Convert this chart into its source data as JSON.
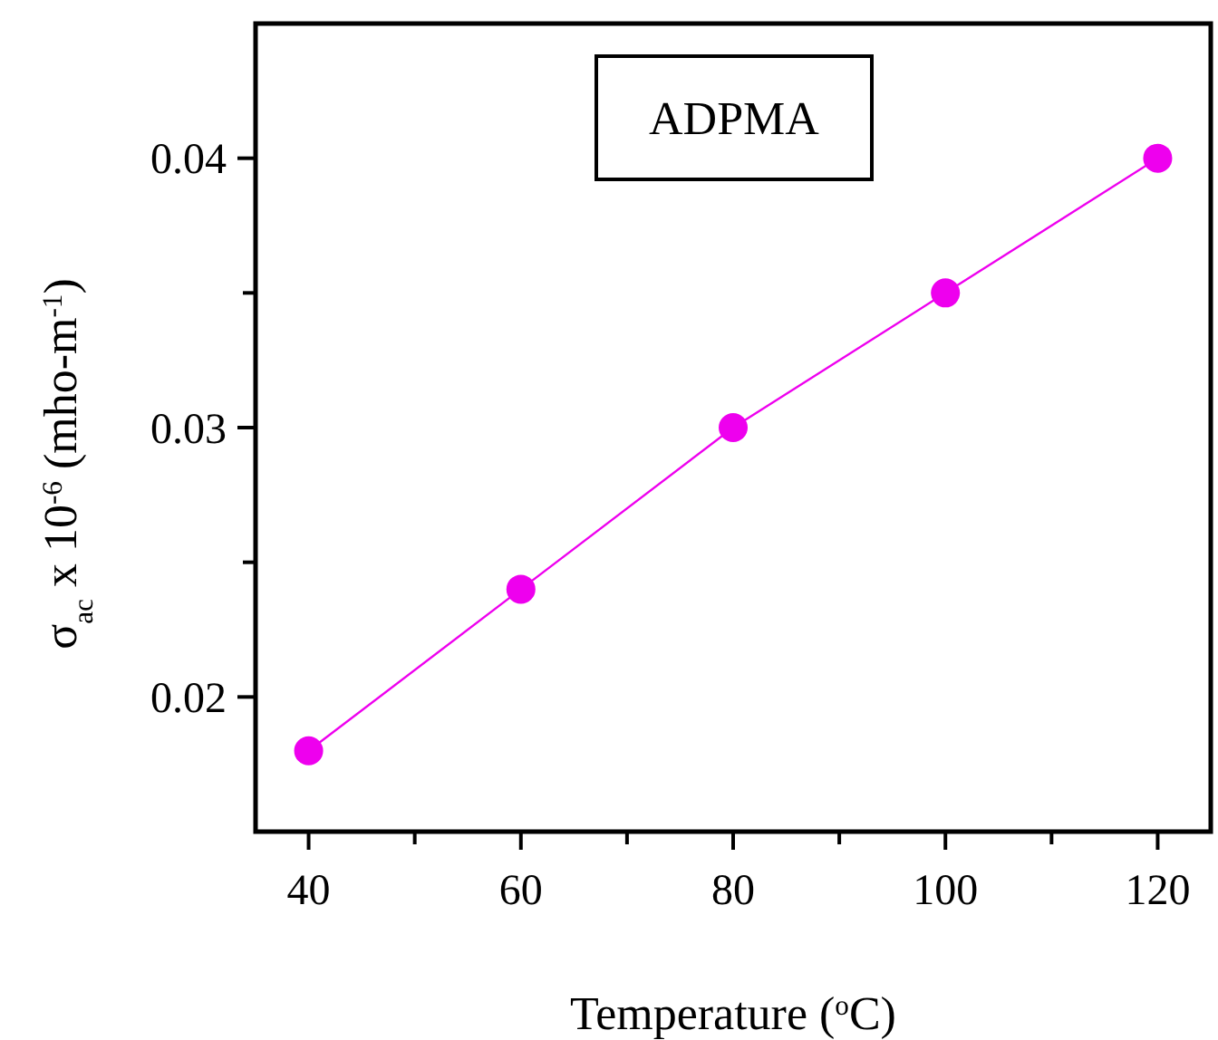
{
  "chart_data": {
    "type": "line",
    "xlabel": "Temperature ($^{o}$C)",
    "ylabel": "σ$_{ac}$ x 10$^{-6}$ (mho-m$^{-1}$)",
    "annotations": [
      "ADPMA"
    ],
    "x": [
      40,
      60,
      80,
      100,
      120
    ],
    "series": [
      {
        "color": "#ee00ee",
        "values": [
          0.018,
          0.024,
          0.03,
          0.035,
          0.04
        ]
      }
    ],
    "xlim": [
      35,
      125
    ],
    "xticks": [
      40,
      {
        "value": 50,
        "label": null
      },
      60,
      {
        "value": 70,
        "label": null
      },
      80,
      {
        "value": 90,
        "label": null
      },
      100,
      {
        "value": 110,
        "label": null
      },
      120
    ],
    "ylim": [
      0.015,
      0.045
    ],
    "yticks": [
      {
        "value": 0.02,
        "label": "0.02"
      },
      {
        "value": 0.025,
        "label": null
      },
      {
        "value": 0.03,
        "label": "0.03"
      },
      {
        "value": 0.035,
        "label": null
      },
      {
        "value": 0.04,
        "label": "0.04"
      }
    ],
    "marker": "circle",
    "line_style": "solid"
  }
}
